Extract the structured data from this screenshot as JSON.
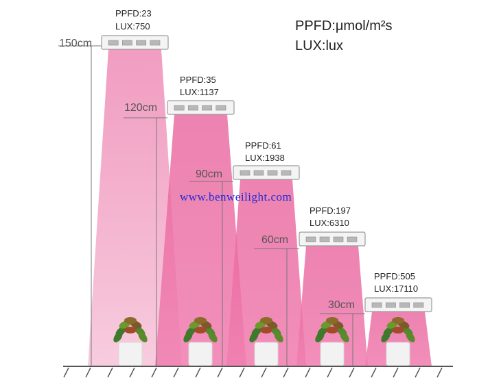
{
  "legend": {
    "ppfd_unit": "PPFD:μmol/m²s",
    "lux_unit": "LUX:lux"
  },
  "watermark": "www.benweilight.com",
  "colors": {
    "beam": "#e8609a",
    "lamp": "#f4f4f4",
    "ground": "#555555",
    "height_line": "#777777"
  },
  "positions": [
    {
      "height": "150cm",
      "ppfd": "PPFD:23",
      "lux": "LUX:750"
    },
    {
      "height": "120cm",
      "ppfd": "PPFD:35",
      "lux": "LUX:1137"
    },
    {
      "height": "90cm",
      "ppfd": "PPFD:61",
      "lux": "LUX:1938"
    },
    {
      "height": "60cm",
      "ppfd": "PPFD:197",
      "lux": "LUX:6310"
    },
    {
      "height": "30cm",
      "ppfd": "PPFD:505",
      "lux": "LUX:17110"
    }
  ]
}
